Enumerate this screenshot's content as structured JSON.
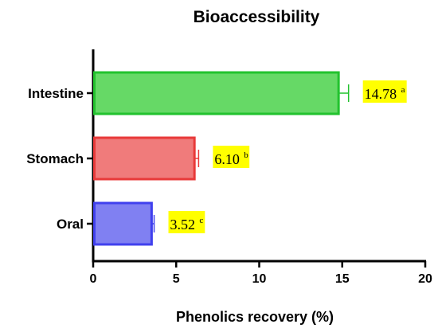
{
  "chart_data": {
    "type": "bar",
    "orientation": "horizontal",
    "title": "Bioaccessibility",
    "xlabel": "Phenolics recovery (%)",
    "ylabel": "",
    "xlim": [
      0,
      20
    ],
    "xticks": [
      "0",
      "5",
      "10",
      "15",
      "20"
    ],
    "categories": [
      "Intestine",
      "Stomach",
      "Oral"
    ],
    "series": [
      {
        "values": [
          14.78,
          6.1,
          3.52
        ],
        "errors": [
          0.6,
          0.25,
          0.15
        ],
        "colors": [
          "#22c22e",
          "#e83a3a",
          "#4040ee"
        ],
        "fills": [
          "#66d966",
          "#f07b7b",
          "#8080f2"
        ]
      }
    ],
    "data_labels": [
      {
        "text": "14.78",
        "sup": "a"
      },
      {
        "text": "6.10",
        "sup": "b"
      },
      {
        "text": "3.52",
        "sup": "c"
      }
    ],
    "label_highlight": "#ffff00",
    "grid": false,
    "legend": "none"
  }
}
